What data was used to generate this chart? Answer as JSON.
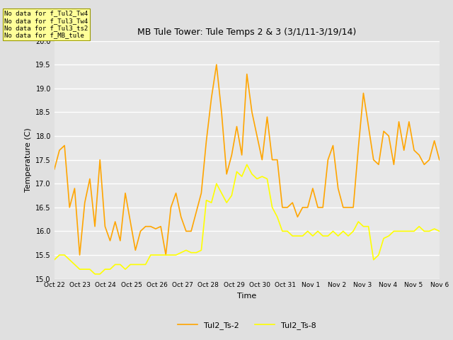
{
  "title": "MB Tule Tower: Tule Temps 2 & 3 (3/1/11-3/19/14)",
  "xlabel": "Time",
  "ylabel": "Temperature (C)",
  "ylim": [
    15.0,
    20.0
  ],
  "yticks": [
    15.0,
    15.5,
    16.0,
    16.5,
    17.0,
    17.5,
    18.0,
    18.5,
    19.0,
    19.5,
    20.0
  ],
  "x_labels": [
    "Oct 22",
    "Oct 23",
    "Oct 24",
    "Oct 25",
    "Oct 26",
    "Oct 27",
    "Oct 28",
    "Oct 29",
    "Oct 30",
    "Oct 31",
    "Nov 1",
    "Nov 2",
    "Nov 3",
    "Nov 4",
    "Nov 5",
    "Nov 6"
  ],
  "line1_color": "#FFA500",
  "line2_color": "#FFFF00",
  "line1_label": "Tul2_Ts-2",
  "line2_label": "Tul2_Ts-8",
  "background_color": "#E0E0E0",
  "plot_bg_color": "#E8E8E8",
  "no_data_texts": [
    "No data for f_Tul2_Tw4",
    "No data for f_Tul3_Tw4",
    "No data for f_Tul3_ts2",
    "No data for f_MB_tule"
  ],
  "annotation_box_color": "#FFFF99",
  "line1_y": [
    17.3,
    17.7,
    17.8,
    16.5,
    16.9,
    15.5,
    16.6,
    17.1,
    16.1,
    17.5,
    16.1,
    15.8,
    16.2,
    15.8,
    16.8,
    16.2,
    15.6,
    16.0,
    16.1,
    16.1,
    16.05,
    16.1,
    15.5,
    16.5,
    16.8,
    16.3,
    16.0,
    16.0,
    16.4,
    16.8,
    17.9,
    18.8,
    19.5,
    18.5,
    17.2,
    17.6,
    18.2,
    17.6,
    19.3,
    18.5,
    18.0,
    17.5,
    18.4,
    17.5,
    17.5,
    16.5,
    16.5,
    16.6,
    16.3,
    16.5,
    16.5,
    16.9,
    16.5,
    16.5,
    17.5,
    17.8,
    16.9,
    16.5,
    16.5,
    16.5,
    17.75,
    18.9,
    18.2,
    17.5,
    17.4,
    18.1,
    18.0,
    17.4,
    18.3,
    17.7,
    18.3,
    17.7,
    17.6,
    17.4,
    17.5,
    17.9,
    17.5
  ],
  "line2_y": [
    15.4,
    15.5,
    15.5,
    15.4,
    15.3,
    15.2,
    15.2,
    15.2,
    15.1,
    15.1,
    15.2,
    15.2,
    15.3,
    15.3,
    15.2,
    15.3,
    15.3,
    15.3,
    15.3,
    15.5,
    15.5,
    15.5,
    15.5,
    15.5,
    15.5,
    15.55,
    15.6,
    15.55,
    15.55,
    15.6,
    16.65,
    16.6,
    17.0,
    16.8,
    16.6,
    16.75,
    17.25,
    17.15,
    17.4,
    17.2,
    17.1,
    17.15,
    17.1,
    16.5,
    16.3,
    16.0,
    16.0,
    15.9,
    15.9,
    15.9,
    16.0,
    15.9,
    16.0,
    15.9,
    15.9,
    16.0,
    15.9,
    16.0,
    15.9,
    16.0,
    16.2,
    16.1,
    16.1,
    15.4,
    15.5,
    15.85,
    15.9,
    16.0,
    16.0,
    16.0,
    16.0,
    16.0,
    16.1,
    16.0,
    16.0,
    16.05,
    16.0
  ]
}
